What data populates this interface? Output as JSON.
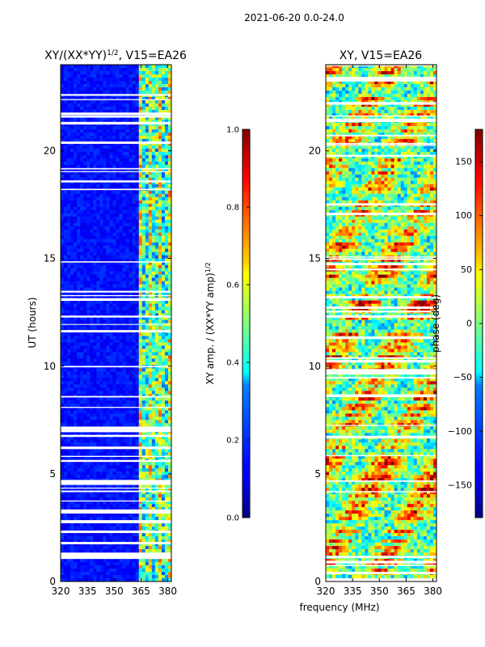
{
  "suptitle": "2021-06-20 0.0-24.0",
  "xlabel": "frequency (MHz)",
  "chart_data": [
    {
      "type": "heatmap",
      "title": "XY/(XX*YY)",
      "title_sup": "1/2",
      "title_suffix": ", V15=EA26",
      "ylabel": "UT (hours)",
      "xlim": [
        320,
        382
      ],
      "ylim": [
        0,
        24
      ],
      "xticks": [
        320,
        335,
        350,
        365,
        380
      ],
      "yticks": [
        0,
        5,
        10,
        15,
        20
      ],
      "colorbar": {
        "label": "XY amp. / (XX*YY amp)",
        "label_sup": "1/2",
        "range": [
          0.0,
          1.0
        ],
        "ticks": [
          "0.0",
          "0.2",
          "0.4",
          "0.6",
          "0.8",
          "1.0"
        ],
        "colormap": "jet"
      }
    },
    {
      "type": "heatmap",
      "title": "XY, V15=EA26",
      "ylabel": "",
      "xlim": [
        320,
        382
      ],
      "ylim": [
        0,
        24
      ],
      "xticks": [
        320,
        335,
        350,
        365,
        380
      ],
      "yticks": [
        0,
        5,
        10,
        15,
        20
      ],
      "colorbar": {
        "label": "phase (deg)",
        "range": [
          -180,
          180
        ],
        "ticks": [
          "−150",
          "−100",
          "−50",
          "0",
          "50",
          "100",
          "150"
        ],
        "colormap": "jet"
      }
    }
  ]
}
